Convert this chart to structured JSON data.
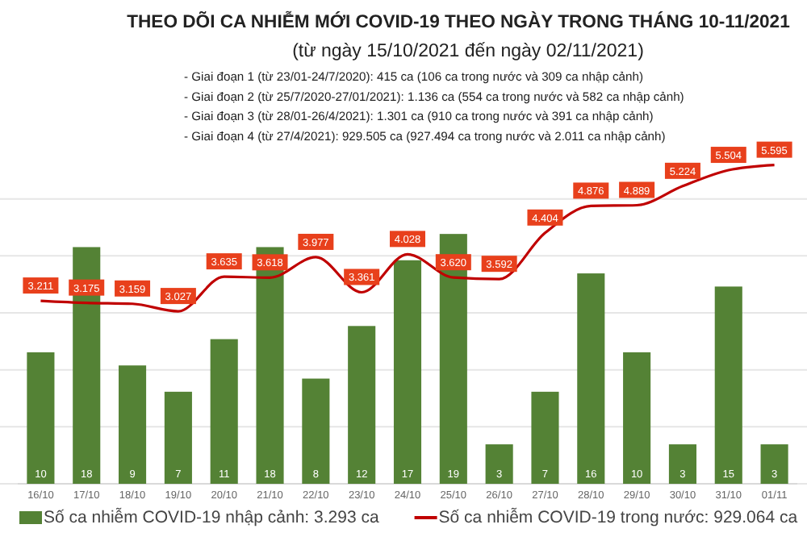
{
  "chart_data": {
    "type": "bar",
    "title": "THEO DÕI CA NHIỄM MỚI COVID-19 THEO NGÀY TRONG THÁNG 10-11/2021",
    "subtitle": "(từ ngày 15/10/2021 đến ngày 02/11/2021)",
    "annotations": [
      "- Giai đoạn 1 (từ 23/01-24/7/2020): 415 ca (106 ca trong nước và 309 ca nhập cảnh)",
      "- Giai đoạn 2 (từ 25/7/2020-27/01/2021): 1.136 ca (554 ca trong nước và 582 ca nhập cảnh)",
      "- Giai đoạn 3 (từ 28/01-26/4/2021): 1.301 ca (910 ca trong nước và 391 ca nhập cảnh)",
      "- Giai đoạn 4 (từ 27/4/2021): 929.505 ca (927.494 ca trong nước và 2.011 ca nhập cảnh)"
    ],
    "categories": [
      "16/10",
      "17/10",
      "18/10",
      "19/10",
      "20/10",
      "21/10",
      "22/10",
      "23/10",
      "24/10",
      "25/10",
      "26/10",
      "27/10",
      "28/10",
      "29/10",
      "30/10",
      "31/10",
      "01/11"
    ],
    "series": [
      {
        "name": "Số ca nhiễm COVID-19 nhập cảnh: 3.293 ca",
        "color": "#548235",
        "values": [
          10,
          18,
          9,
          7,
          11,
          18,
          8,
          12,
          17,
          19,
          3,
          7,
          16,
          10,
          3,
          15,
          3
        ],
        "value_labels": [
          "10",
          "18",
          "9",
          "7",
          "11",
          "18",
          "8",
          "12",
          "17",
          "19",
          "3",
          "7",
          "16",
          "10",
          "3",
          "15",
          "3"
        ]
      },
      {
        "name": "Số ca nhiễm COVID-19 trong nước: 929.064 ca",
        "type": "line",
        "axis": "y2",
        "color": "#c00000",
        "values": [
          3211,
          3175,
          3159,
          3027,
          3635,
          3618,
          3977,
          3361,
          4028,
          3620,
          3592,
          4404,
          4876,
          4889,
          5224,
          5504,
          5595
        ],
        "value_labels": [
          "3.211",
          "3.175",
          "3.159",
          "3.027",
          "3.635",
          "3.618",
          "3.977",
          "3.361",
          "4.028",
          "3.620",
          "3.592",
          "4.404",
          "4.876",
          "4.889",
          "5.224",
          "5.504",
          "5.595"
        ]
      }
    ],
    "ylim": [
      0,
      26
    ],
    "y2lim": [
      0,
      6000
    ],
    "y2ticks": [
      {
        "value": 0,
        "label": null
      },
      {
        "value": 1000,
        "label": null
      },
      {
        "value": 2000,
        "label": null
      },
      {
        "value": 3000,
        "label": null
      },
      {
        "value": 4000,
        "label": null
      },
      {
        "value": 5000,
        "label": null
      }
    ],
    "tick_labels": "x",
    "grid": true,
    "legend": "bottom"
  }
}
